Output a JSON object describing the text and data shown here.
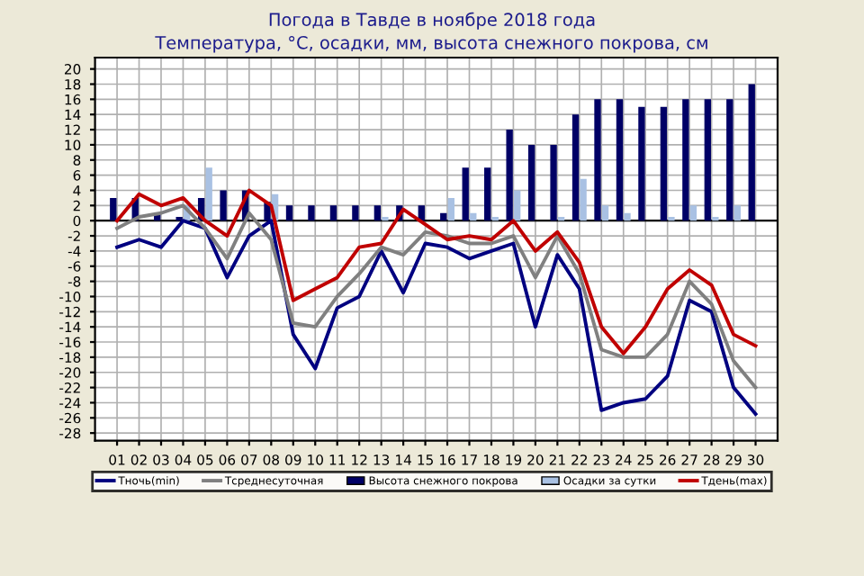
{
  "chart_data": {
    "type": "bar",
    "title": "Погода в Тавде в ноябре 2018 года",
    "subtitle": "Температура, °С, осадки, мм, высота снежного покрова, см",
    "categories": [
      "01",
      "02",
      "03",
      "04",
      "05",
      "06",
      "07",
      "08",
      "09",
      "10",
      "11",
      "12",
      "13",
      "14",
      "15",
      "16",
      "17",
      "18",
      "19",
      "20",
      "21",
      "22",
      "23",
      "24",
      "25",
      "26",
      "27",
      "28",
      "29",
      "30"
    ],
    "series": [
      {
        "name": "Тночь(min)",
        "type": "line",
        "color": "#000080",
        "values": [
          -3.5,
          -2.5,
          -3.5,
          0,
          -1,
          -7.5,
          -2,
          0,
          -15,
          -19.5,
          -11.5,
          -10,
          -4,
          -9.5,
          -3,
          -3.5,
          -5,
          -4,
          -3,
          -14,
          -4.5,
          -9,
          -25,
          -24,
          -23.5,
          -20.5,
          -10.5,
          -12,
          -22,
          -25.5
        ]
      },
      {
        "name": "Тсреднесуточная",
        "type": "line",
        "color": "#808080",
        "values": [
          -1,
          0.5,
          1,
          2,
          -1,
          -5,
          1,
          -2.5,
          -13.5,
          -14,
          -10,
          -7,
          -3.5,
          -4.5,
          -1.5,
          -2,
          -3,
          -3,
          -2,
          -7.5,
          -2,
          -7,
          -17,
          -18,
          -18,
          -15,
          -8,
          -11,
          -18.5,
          -22
        ]
      },
      {
        "name": "Высота снежного покрова",
        "color": "#000066",
        "values": [
          3,
          3,
          1,
          0.5,
          3,
          4,
          4,
          2.5,
          2,
          2,
          2,
          2,
          2,
          2,
          2,
          1,
          7,
          7,
          12,
          10,
          10,
          14,
          16,
          16,
          15,
          15,
          16,
          16,
          16,
          18
        ]
      },
      {
        "name": "Осадки за сутки",
        "color": "#a9c1e3",
        "values": [
          null,
          0,
          0,
          2,
          7,
          0,
          0,
          3.5,
          0,
          0,
          0,
          0,
          0.5,
          0,
          0,
          3,
          1,
          0.5,
          4,
          0,
          0.5,
          5.5,
          2,
          1,
          0,
          0.5,
          2,
          0.5,
          2,
          0
        ]
      },
      {
        "name": "Тдень(max)",
        "type": "line",
        "color": "#c00000",
        "values": [
          0,
          3.5,
          2,
          3,
          0,
          -2,
          4,
          2,
          -10.5,
          -9,
          -7.5,
          -3.5,
          -3,
          1.5,
          -0.5,
          -2.5,
          -2,
          -2.5,
          0,
          -4,
          -1.5,
          -5.5,
          -14,
          -17.5,
          -14,
          -9,
          -6.5,
          -8.5,
          -15,
          -16.5
        ]
      }
    ],
    "ylim": [
      -29,
      21.5
    ],
    "yticks": [
      -28,
      -26,
      -24,
      -22,
      -20,
      -18,
      -16,
      -14,
      -12,
      -10,
      -8,
      -6,
      -4,
      -2,
      0,
      2,
      4,
      6,
      8,
      10,
      12,
      14,
      16,
      18,
      20
    ],
    "grid": true,
    "legend": "bottom"
  }
}
